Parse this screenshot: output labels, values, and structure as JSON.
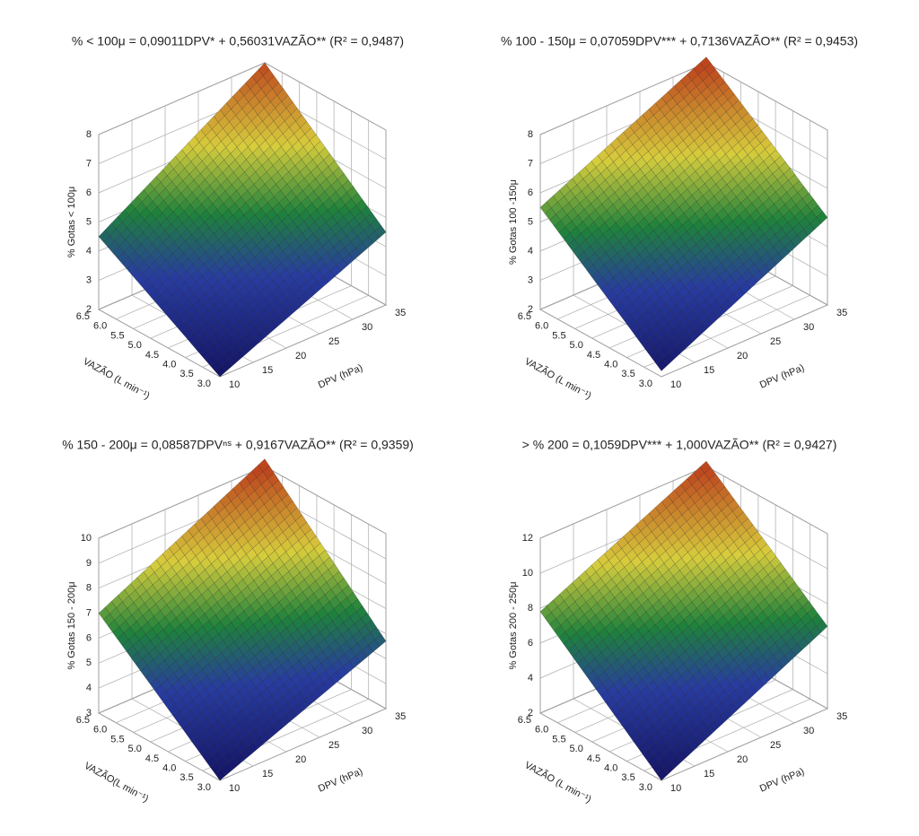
{
  "chart_data": [
    {
      "type": "surface",
      "title": "% < 100μ = 0,09011DPV* + 0,56031VAZÃO** (R² = 0,9487)",
      "x_label": "VAZÃO (L min⁻¹)",
      "y_label": "DPV (hPa)",
      "z_label": "% Gotas < 100μ",
      "x": [
        3.0,
        6.5
      ],
      "y": [
        10,
        35
      ],
      "z": [
        [
          2,
          4.5
        ],
        [
          4.5,
          8
        ]
      ],
      "xlim": [
        3.0,
        6.5
      ],
      "ylim": [
        10,
        35
      ],
      "zlim": [
        2,
        8
      ],
      "xticks": [
        {
          "value": 3,
          "label": "3.0"
        },
        3.5,
        {
          "value": 4,
          "label": "4.0"
        },
        4.5,
        {
          "value": 5,
          "label": "5.0"
        },
        5.5,
        {
          "value": 6,
          "label": "6.0"
        },
        6.5
      ],
      "yticks": [
        10,
        15,
        20,
        25,
        30,
        35
      ],
      "zticks": [
        2,
        3,
        4,
        5,
        6,
        7,
        8
      ]
    },
    {
      "type": "surface",
      "title": "% 100 - 150μ = 0,07059DPV*** + 0,7136VAZÃO** (R² = 0,9453)",
      "x_label": "VAZÃO (L min⁻¹)",
      "y_label": "DPV (hPa)",
      "z_label": "% Gotas 100 -150μ",
      "x": [
        3.0,
        6.5
      ],
      "y": [
        10,
        35
      ],
      "z": [
        [
          2.2,
          5
        ],
        [
          5.5,
          8.2
        ]
      ],
      "xlim": [
        3.0,
        6.5
      ],
      "ylim": [
        10,
        35
      ],
      "zlim": [
        2,
        8
      ],
      "xticks": [
        {
          "value": 3,
          "label": "3.0"
        },
        3.5,
        {
          "value": 4,
          "label": "4.0"
        },
        4.5,
        {
          "value": 5,
          "label": "5.0"
        },
        5.5,
        {
          "value": 6,
          "label": "6.0"
        },
        6.5
      ],
      "yticks": [
        10,
        15,
        20,
        25,
        30,
        35
      ],
      "zticks": [
        2,
        3,
        4,
        5,
        6,
        7,
        8
      ]
    },
    {
      "type": "surface",
      "title": "% 150 - 200μ = 0,08587DPVⁿˢ + 0,9167VAZÃO** (R² = 0,9359)",
      "x_label": "VAZÃO(L min⁻¹)",
      "y_label": "DPV (hPa)",
      "z_label": "% Gotas 150 - 200μ",
      "x": [
        3.0,
        6.5
      ],
      "y": [
        10,
        35
      ],
      "z": [
        [
          3,
          5.7
        ],
        [
          7,
          10.3
        ]
      ],
      "xlim": [
        3.0,
        6.5
      ],
      "ylim": [
        10,
        35
      ],
      "zlim": [
        3,
        10
      ],
      "xticks": [
        {
          "value": 3,
          "label": "3.0"
        },
        3.5,
        {
          "value": 4,
          "label": "4.0"
        },
        4.5,
        {
          "value": 5,
          "label": "5.0"
        },
        5.5,
        {
          "value": 6,
          "label": "6.0"
        },
        6.5
      ],
      "yticks": [
        10,
        15,
        20,
        25,
        30,
        35
      ],
      "zticks": [
        3,
        4,
        5,
        6,
        7,
        8,
        9,
        10
      ]
    },
    {
      "type": "surface",
      "title": "> % 200  = 0,1059DPV*** + 1,000VAZÃO** (R² = 0,9427)",
      "x_label": "VAZÃO (L min⁻¹)",
      "y_label": "DPV (hPa)",
      "z_label": "% Gotas 200 - 250μ",
      "x": [
        3.0,
        6.5
      ],
      "y": [
        10,
        35
      ],
      "z": [
        [
          2,
          6.7
        ],
        [
          7.8,
          12.3
        ]
      ],
      "xlim": [
        3.0,
        6.5
      ],
      "ylim": [
        10,
        35
      ],
      "zlim": [
        2,
        12
      ],
      "xticks": [
        {
          "value": 3,
          "label": "3.0"
        },
        3.5,
        {
          "value": 4,
          "label": "4.0"
        },
        4.5,
        {
          "value": 5,
          "label": "5.0"
        },
        5.5,
        {
          "value": 6,
          "label": "6.0"
        },
        6.5
      ],
      "yticks": [
        10,
        15,
        20,
        25,
        30,
        35
      ],
      "zticks": [
        2,
        4,
        6,
        8,
        10,
        12
      ]
    }
  ]
}
